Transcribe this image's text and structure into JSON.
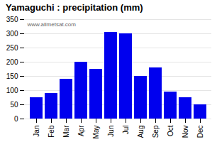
{
  "chart_data": {
    "type": "bar",
    "title": "Yamaguchi : precipitation (mm)",
    "categories": [
      "Jan",
      "Feb",
      "Mar",
      "Apr",
      "May",
      "Jun",
      "Jul",
      "Aug",
      "Sep",
      "Oct",
      "Nov",
      "Dec"
    ],
    "values": [
      75,
      90,
      140,
      200,
      175,
      305,
      300,
      150,
      180,
      95,
      75,
      50
    ],
    "color": "#0000ee",
    "ylim": [
      0,
      350
    ],
    "yticks": [
      0,
      50,
      100,
      150,
      200,
      250,
      300,
      350
    ],
    "grid": true,
    "annotations": [
      "www.allmetsat.com"
    ]
  }
}
